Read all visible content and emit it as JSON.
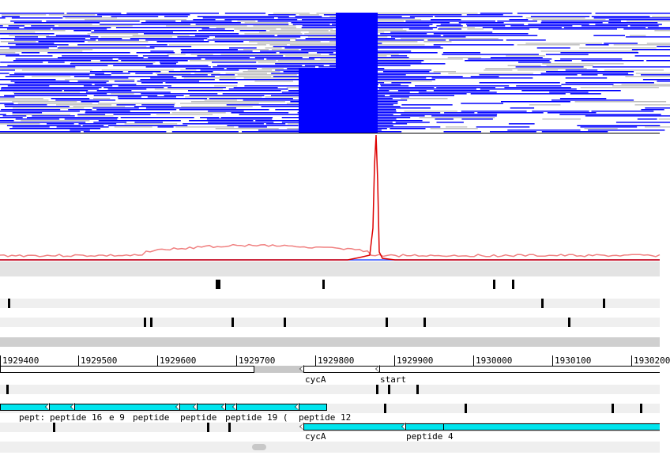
{
  "colors": {
    "reads_blue": "#0000ff",
    "reads_gray": "#c0c0c0",
    "coverage_pink": "#f08080",
    "coverage_red": "#dd0000",
    "feature_cyan": "#00e5ee",
    "baseline_blue": "#3050ff"
  },
  "ruler": {
    "labels": [
      "1929400",
      "1929500",
      "1929600",
      "1929700",
      "1929800",
      "1929900",
      "1930000",
      "1930100",
      "1930200"
    ]
  },
  "features": {
    "gene_label_1": "cycA",
    "gene_label_2": "start",
    "gene_label_3": "cycA",
    "peptide_labels_row": [
      "pept:",
      "peptide 16",
      "e 9",
      "peptide",
      "peptide",
      "peptide 19 (",
      "peptide 12"
    ],
    "peptide_4": "peptide 4"
  }
}
